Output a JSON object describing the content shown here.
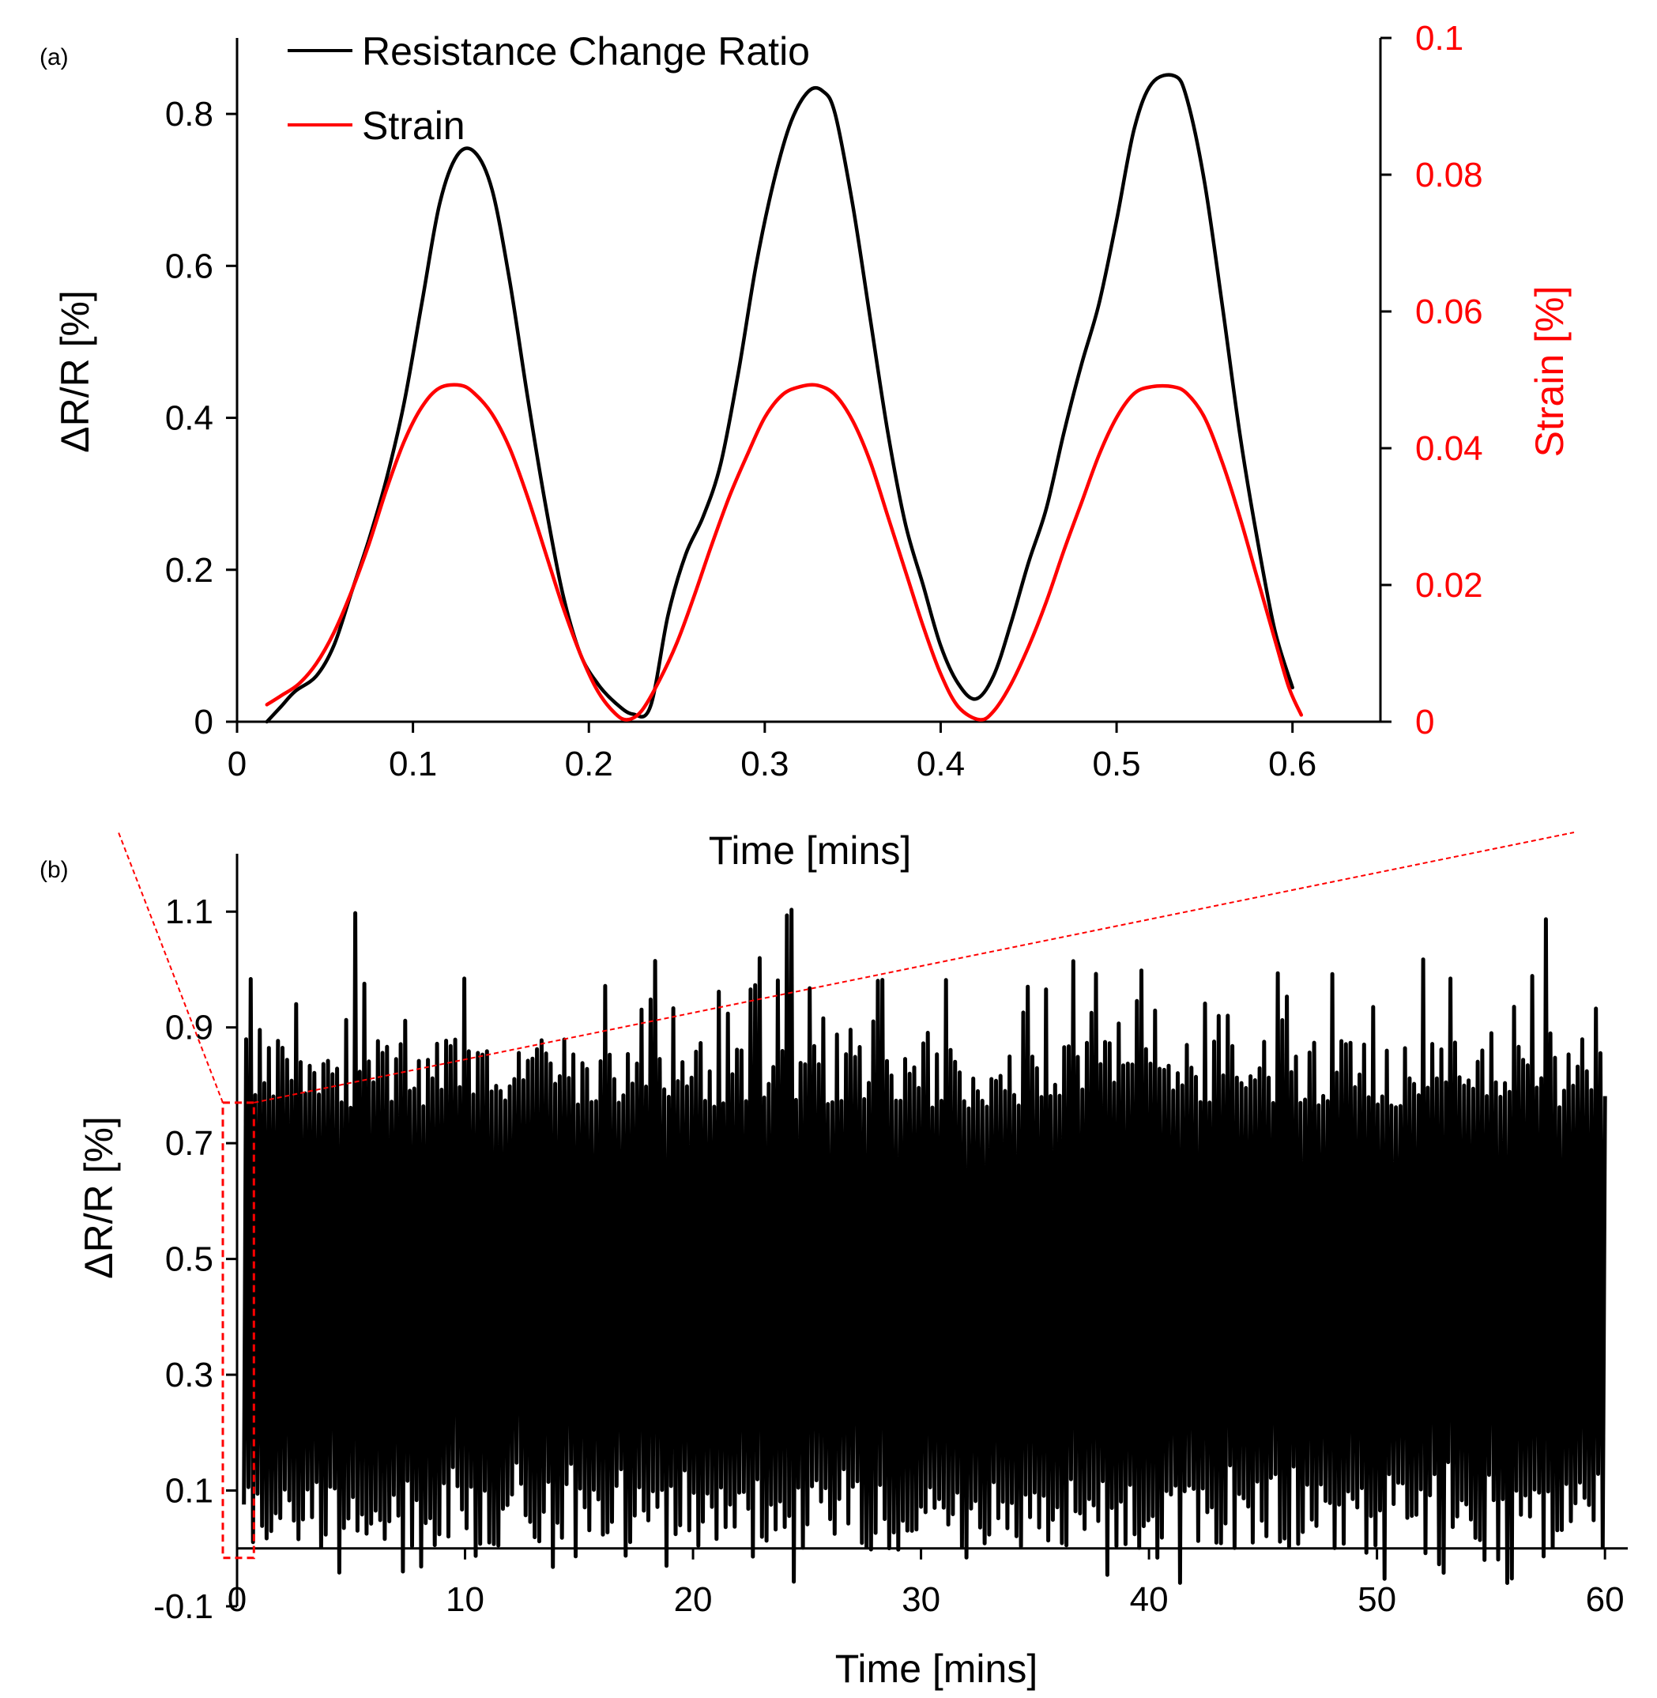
{
  "figure": {
    "panel_a_label": "(a)",
    "panel_b_label": "(b)"
  },
  "colors": {
    "axis": "#000000",
    "resistance": "#000000",
    "strain": "#ff0000",
    "zoom": "#ff0000"
  },
  "chart_data": [
    {
      "type": "line",
      "panel": "(a)",
      "title": "",
      "xlabel": "Time [mins]",
      "ylabel": "ΔR/R [%]",
      "y2label": "Strain [%]",
      "xlim": [
        0,
        0.65
      ],
      "ylim": [
        0,
        0.9
      ],
      "y2lim": [
        0,
        0.1
      ],
      "x_ticks": [
        0,
        0.1,
        0.2,
        0.3,
        0.4,
        0.5,
        0.6
      ],
      "x_tick_labels": [
        "0",
        "0.1",
        "0.2",
        "0.3",
        "0.4",
        "0.5",
        "0.6"
      ],
      "y_ticks": [
        0,
        0.2,
        0.4,
        0.6,
        0.8
      ],
      "y_tick_labels": [
        "0",
        "0.2",
        "0.4",
        "0.6",
        "0.8"
      ],
      "y2_ticks": [
        0,
        0.02,
        0.04,
        0.06,
        0.08,
        0.1
      ],
      "y2_tick_labels": [
        "0",
        "0.02",
        "0.04",
        "0.06",
        "0.08",
        "0.1"
      ],
      "grid": false,
      "legend_position": "top-left",
      "series": [
        {
          "name": "Resistance Change Ratio",
          "axis": "left",
          "color": "#000000",
          "x": [
            0.017,
            0.025,
            0.033,
            0.045,
            0.055,
            0.065,
            0.075,
            0.085,
            0.095,
            0.105,
            0.115,
            0.125,
            0.135,
            0.145,
            0.155,
            0.165,
            0.175,
            0.185,
            0.195,
            0.205,
            0.215,
            0.225,
            0.235,
            0.245,
            0.255,
            0.265,
            0.275,
            0.285,
            0.295,
            0.305,
            0.315,
            0.325,
            0.333,
            0.34,
            0.35,
            0.36,
            0.37,
            0.38,
            0.39,
            0.4,
            0.41,
            0.42,
            0.43,
            0.44,
            0.45,
            0.46,
            0.47,
            0.48,
            0.49,
            0.5,
            0.51,
            0.52,
            0.533,
            0.54,
            0.55,
            0.56,
            0.57,
            0.58,
            0.59,
            0.6
          ],
          "y": [
            0.0,
            0.02,
            0.04,
            0.06,
            0.1,
            0.17,
            0.24,
            0.32,
            0.42,
            0.55,
            0.68,
            0.745,
            0.75,
            0.7,
            0.58,
            0.43,
            0.29,
            0.17,
            0.09,
            0.05,
            0.025,
            0.01,
            0.02,
            0.14,
            0.22,
            0.27,
            0.34,
            0.46,
            0.6,
            0.71,
            0.79,
            0.83,
            0.83,
            0.8,
            0.68,
            0.53,
            0.38,
            0.26,
            0.18,
            0.1,
            0.05,
            0.03,
            0.06,
            0.13,
            0.21,
            0.28,
            0.38,
            0.47,
            0.55,
            0.66,
            0.78,
            0.84,
            0.85,
            0.82,
            0.71,
            0.55,
            0.38,
            0.24,
            0.12,
            0.045
          ]
        },
        {
          "name": "Strain",
          "axis": "right",
          "color": "#ff0000",
          "x": [
            0.017,
            0.025,
            0.035,
            0.045,
            0.055,
            0.065,
            0.075,
            0.085,
            0.095,
            0.105,
            0.115,
            0.127,
            0.135,
            0.145,
            0.155,
            0.165,
            0.175,
            0.185,
            0.195,
            0.205,
            0.215,
            0.222,
            0.23,
            0.24,
            0.25,
            0.26,
            0.27,
            0.28,
            0.29,
            0.3,
            0.31,
            0.32,
            0.33,
            0.34,
            0.35,
            0.36,
            0.37,
            0.38,
            0.39,
            0.4,
            0.41,
            0.422,
            0.43,
            0.44,
            0.45,
            0.46,
            0.47,
            0.48,
            0.49,
            0.5,
            0.51,
            0.52,
            0.532,
            0.54,
            0.55,
            0.56,
            0.57,
            0.58,
            0.59,
            0.598,
            0.605
          ],
          "y": [
            0.0025,
            0.0038,
            0.0055,
            0.0085,
            0.013,
            0.019,
            0.026,
            0.034,
            0.041,
            0.046,
            0.0488,
            0.0492,
            0.048,
            0.045,
            0.04,
            0.033,
            0.025,
            0.017,
            0.01,
            0.0045,
            0.0012,
            0.0003,
            0.0016,
            0.006,
            0.0115,
            0.0185,
            0.026,
            0.033,
            0.039,
            0.0445,
            0.0478,
            0.049,
            0.0492,
            0.0478,
            0.044,
            0.038,
            0.03,
            0.022,
            0.014,
            0.007,
            0.0022,
            0.0003,
            0.0015,
            0.0055,
            0.011,
            0.0175,
            0.025,
            0.032,
            0.039,
            0.0445,
            0.048,
            0.049,
            0.049,
            0.048,
            0.0445,
            0.038,
            0.03,
            0.021,
            0.012,
            0.005,
            0.001
          ]
        }
      ]
    },
    {
      "type": "line",
      "panel": "(b)",
      "title": "",
      "xlabel": "Time [mins]",
      "ylabel": "ΔR/R [%]",
      "xlim": [
        0,
        61
      ],
      "ylim": [
        -0.1,
        1.2
      ],
      "x_ticks": [
        0,
        10,
        20,
        30,
        40,
        50,
        60
      ],
      "x_tick_labels": [
        "0",
        "10",
        "20",
        "30",
        "40",
        "50",
        "60"
      ],
      "y_ticks": [
        -0.1,
        0.1,
        0.3,
        0.5,
        0.7,
        0.9,
        1.1
      ],
      "y_tick_labels": [
        "-0.1",
        "0.1",
        "0.3",
        "0.5",
        "0.7",
        "0.9",
        "1.1"
      ],
      "grid": false,
      "zoom_region": {
        "x_range": [
          0,
          0.6
        ],
        "y_range": [
          0,
          0.77
        ]
      },
      "series": [
        {
          "name": "Resistance Change Ratio",
          "color": "#000000",
          "cycle_period_min": 0.2,
          "cycles": 300,
          "x_range": [
            0.3,
            60.1
          ],
          "peak_range": [
            0.76,
            1.11
          ],
          "trough_range": [
            -0.06,
            0.15
          ]
        }
      ]
    }
  ]
}
